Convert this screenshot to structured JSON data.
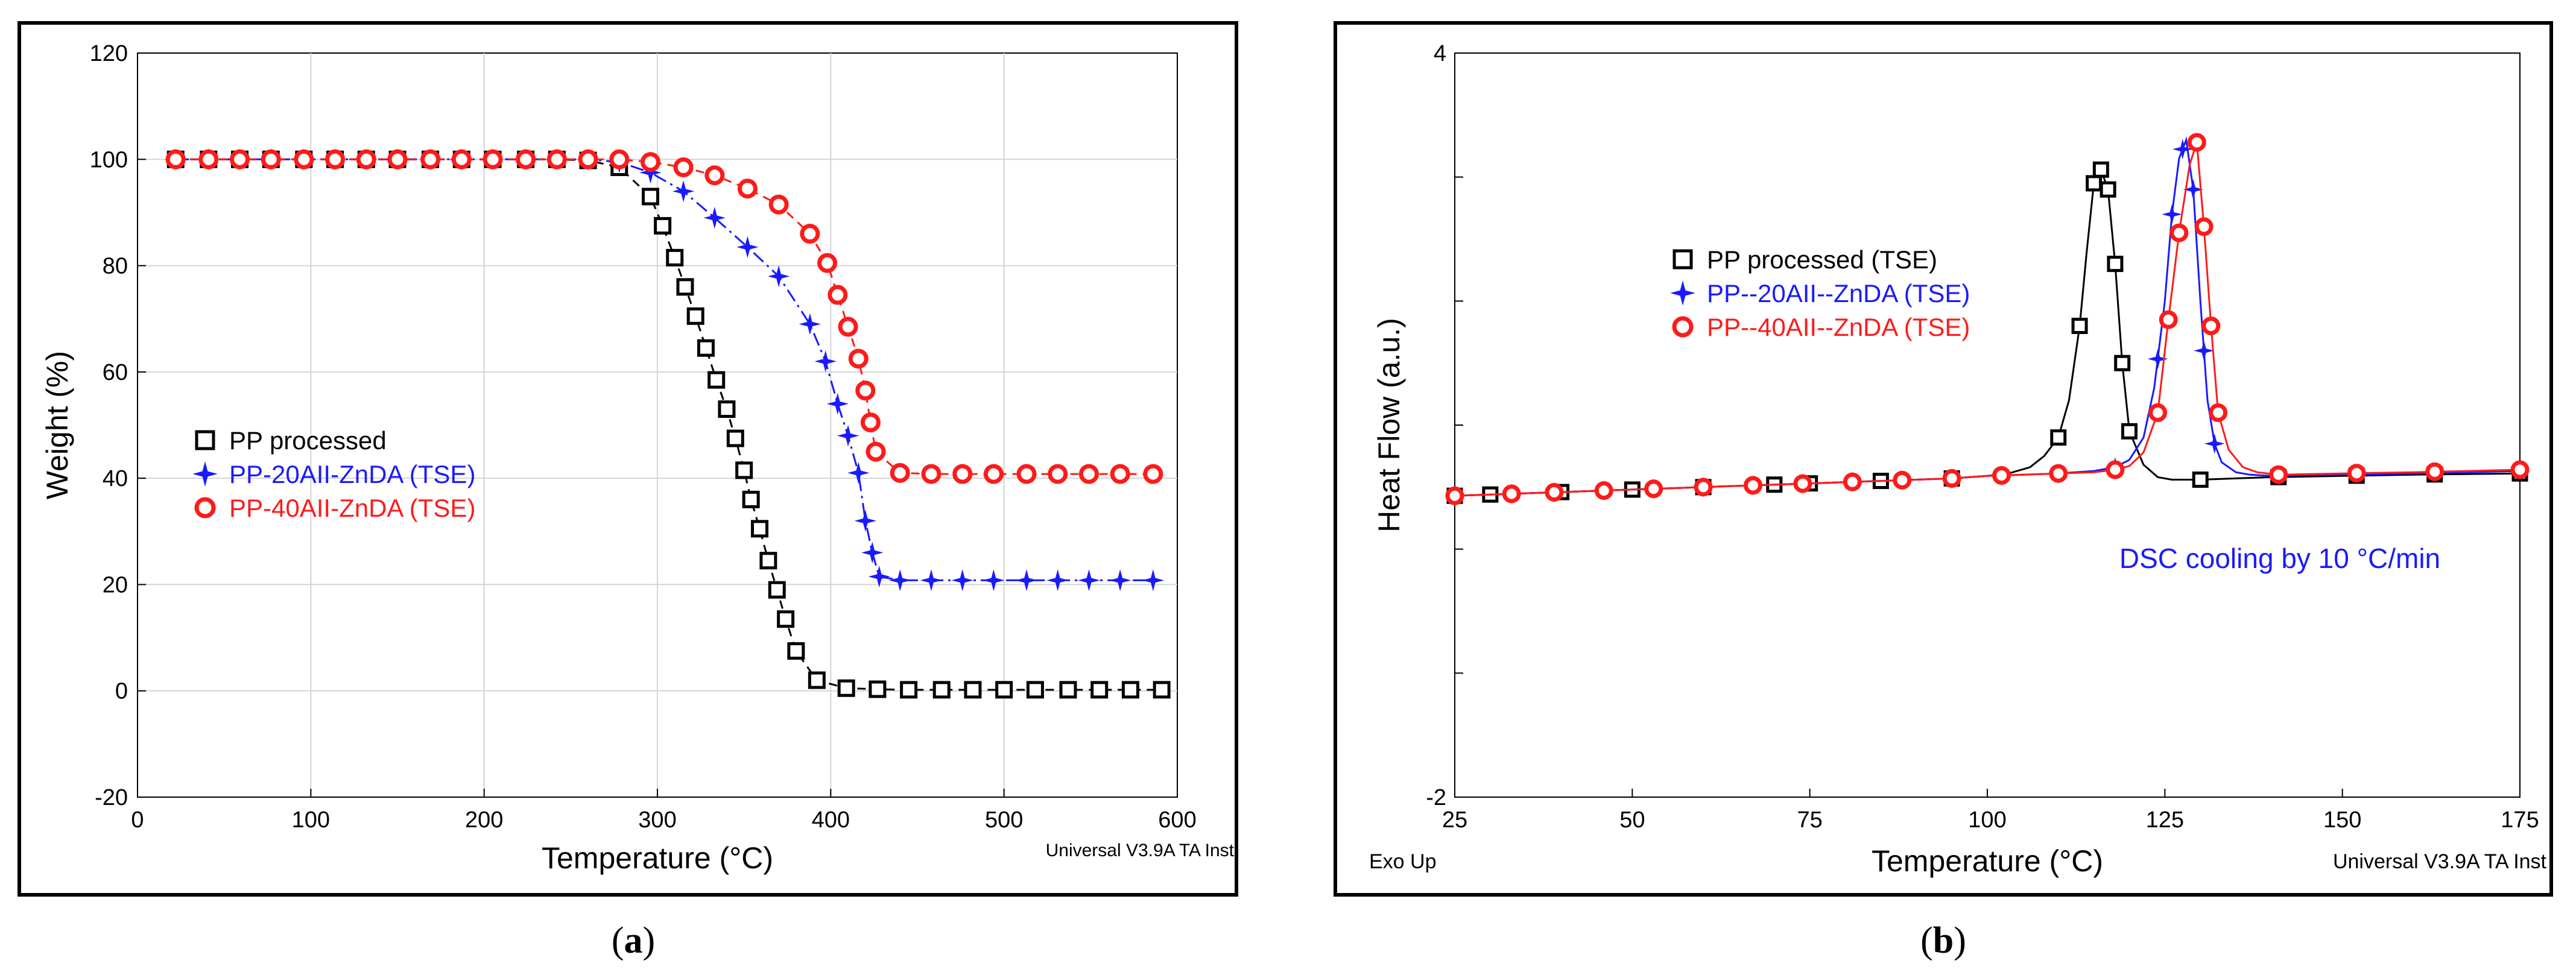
{
  "colors": {
    "pp": "#000000",
    "zn20": "#1a1aff",
    "zn40": "#ff1a1a",
    "blue_text": "#1a1aff",
    "grid": "#d4d4d4"
  },
  "chart_data": [
    {
      "id": "a",
      "type": "scatter",
      "caption": {
        "open": "(",
        "letter": "a",
        "close": ")"
      },
      "xlabel": "Temperature (°C)",
      "ylabel": "Weight (%)",
      "xlim": [
        0,
        600
      ],
      "ylim": [
        -20,
        120
      ],
      "xticks": [
        0,
        100,
        200,
        300,
        400,
        500,
        600
      ],
      "yticks": [
        -20,
        0,
        20,
        40,
        60,
        80,
        100,
        120
      ],
      "grid": true,
      "footer_right": "Universal V3.9A TA Inst",
      "legend_position": "middle-left",
      "series": [
        {
          "name": "PP processed",
          "color_key": "pp",
          "marker": "square",
          "style": "dashed",
          "x": [
            22,
            41,
            59,
            77,
            96,
            114,
            132,
            150,
            169,
            187,
            205,
            224,
            242,
            260,
            278,
            296,
            303,
            310,
            316,
            322,
            328,
            334,
            340,
            345,
            350,
            354,
            359,
            364,
            369,
            374,
            380,
            392,
            409,
            427,
            445,
            464,
            482,
            500,
            518,
            537,
            555,
            573,
            591
          ],
          "y": [
            100,
            100,
            100,
            100,
            100,
            100,
            100,
            100,
            100,
            100,
            100,
            100,
            100,
            99.8,
            98.5,
            93,
            87.5,
            81.5,
            76,
            70.5,
            64.5,
            58.5,
            53,
            47.5,
            41.5,
            36,
            30.5,
            24.5,
            19,
            13.5,
            7.5,
            2,
            0.5,
            0.3,
            0.2,
            0.2,
            0.2,
            0.2,
            0.2,
            0.2,
            0.2,
            0.2,
            0.2
          ]
        },
        {
          "name": "PP-20AII-ZnDA (TSE)",
          "color_key": "zn20",
          "marker": "star",
          "style": "dashdot",
          "x": [
            22,
            41,
            59,
            77,
            96,
            114,
            132,
            150,
            169,
            187,
            205,
            224,
            242,
            260,
            278,
            296,
            315,
            333,
            352,
            370,
            388,
            397,
            404,
            410,
            416,
            420,
            424,
            428,
            440,
            458,
            476,
            494,
            513,
            531,
            549,
            567,
            586
          ],
          "y": [
            100,
            100,
            100,
            100,
            100,
            100,
            100,
            100,
            100,
            100,
            100,
            100,
            100,
            100,
            99.5,
            97.5,
            94,
            89,
            83.5,
            78,
            69,
            62,
            54,
            48,
            41,
            32,
            26,
            21.5,
            20.8,
            20.8,
            20.8,
            20.8,
            20.8,
            20.8,
            20.8,
            20.8,
            20.8
          ]
        },
        {
          "name": "PP-40AII-ZnDA (TSE)",
          "color_key": "zn40",
          "marker": "circle",
          "style": "dashed",
          "x": [
            22,
            41,
            59,
            77,
            96,
            114,
            132,
            150,
            169,
            187,
            205,
            224,
            242,
            260,
            278,
            296,
            315,
            333,
            352,
            370,
            388,
            398,
            404,
            410,
            416,
            420,
            423,
            426,
            440,
            458,
            476,
            494,
            513,
            531,
            549,
            567,
            586
          ],
          "y": [
            100,
            100,
            100,
            100,
            100,
            100,
            100,
            100,
            100,
            100,
            100,
            100,
            100,
            100,
            100,
            99.5,
            98.5,
            97,
            94.5,
            91.5,
            86,
            80.5,
            74.5,
            68.5,
            62.5,
            56.5,
            50.5,
            45,
            41,
            40.8,
            40.8,
            40.8,
            40.8,
            40.8,
            40.8,
            40.8,
            40.8
          ]
        }
      ]
    },
    {
      "id": "b",
      "type": "scatter",
      "caption": {
        "open": "(",
        "letter": "b",
        "close": ")"
      },
      "xlabel": "Temperature (°C)",
      "ylabel": "Heat Flow (a.u.)",
      "xlim": [
        25,
        175
      ],
      "ylim": [
        -2,
        4
      ],
      "xticks": [
        25,
        50,
        75,
        100,
        125,
        150,
        175
      ],
      "yticks_labeled": [
        -2,
        4
      ],
      "grid": false,
      "footer_left": "Exo Up",
      "footer_right": "Universal V3.9A TA Inst",
      "annotation": "DSC cooling by 10 °C/min",
      "legend_position": "upper-middle",
      "series": [
        {
          "name": "PP processed (TSE)",
          "color_key": "pp",
          "marker": "square",
          "x": [
            25,
            30,
            35,
            40,
            45,
            50,
            55,
            60,
            65,
            70,
            75,
            80,
            85,
            90,
            95,
            100,
            103,
            106,
            108,
            110,
            111.5,
            113,
            114,
            115,
            116,
            117,
            118,
            119,
            120,
            122,
            124,
            126,
            128,
            130,
            135,
            140,
            150,
            160,
            175
          ],
          "y": [
            0.43,
            0.44,
            0.45,
            0.46,
            0.47,
            0.48,
            0.49,
            0.5,
            0.51,
            0.52,
            0.53,
            0.54,
            0.55,
            0.56,
            0.57,
            0.59,
            0.61,
            0.66,
            0.75,
            0.9,
            1.2,
            1.8,
            2.4,
            2.95,
            3.06,
            2.9,
            2.3,
            1.5,
            0.95,
            0.68,
            0.58,
            0.56,
            0.56,
            0.56,
            0.57,
            0.58,
            0.59,
            0.6,
            0.61
          ]
        },
        {
          "name": "PP--20AII--ZnDA (TSE)",
          "color_key": "zn20",
          "marker": "star",
          "x": [
            25,
            30,
            35,
            40,
            45,
            50,
            55,
            60,
            65,
            70,
            75,
            80,
            85,
            90,
            95,
            100,
            105,
            110,
            115,
            118,
            120,
            122,
            123.5,
            125,
            126,
            127,
            128,
            129,
            130,
            131,
            132,
            133,
            135,
            137,
            140,
            150,
            160,
            175
          ],
          "y": [
            0.43,
            0.44,
            0.45,
            0.46,
            0.47,
            0.48,
            0.49,
            0.5,
            0.51,
            0.52,
            0.53,
            0.54,
            0.55,
            0.56,
            0.57,
            0.59,
            0.6,
            0.61,
            0.63,
            0.66,
            0.72,
            0.9,
            1.3,
            2.0,
            2.7,
            3.15,
            3.3,
            2.9,
            2.0,
            1.2,
            0.85,
            0.7,
            0.62,
            0.6,
            0.59,
            0.6,
            0.61,
            0.63
          ]
        },
        {
          "name": "PP--40AII--ZnDA (TSE)",
          "color_key": "zn40",
          "marker": "circle",
          "x": [
            25,
            30,
            35,
            40,
            45,
            50,
            55,
            60,
            65,
            70,
            75,
            80,
            85,
            90,
            95,
            100,
            105,
            110,
            115,
            118,
            120,
            122,
            124,
            125.5,
            127,
            128.5,
            129.5,
            130.5,
            131.5,
            132.5,
            134,
            136,
            138,
            141,
            150,
            160,
            175
          ],
          "y": [
            0.43,
            0.44,
            0.45,
            0.46,
            0.47,
            0.48,
            0.49,
            0.5,
            0.51,
            0.52,
            0.53,
            0.54,
            0.55,
            0.56,
            0.57,
            0.59,
            0.6,
            0.61,
            0.62,
            0.64,
            0.67,
            0.78,
            1.1,
            1.85,
            2.55,
            3.1,
            3.28,
            2.6,
            1.8,
            1.1,
            0.8,
            0.66,
            0.62,
            0.6,
            0.61,
            0.62,
            0.64
          ]
        }
      ]
    }
  ]
}
